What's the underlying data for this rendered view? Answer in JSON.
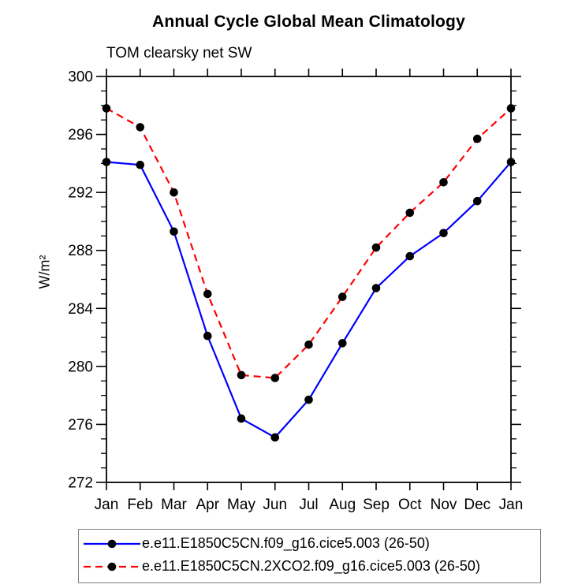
{
  "chart_data": {
    "type": "line",
    "title": "Annual Cycle Global Mean Climatology",
    "subtitle": "TOM clearsky net SW",
    "ylabel": "W/m²",
    "x": [
      "Jan",
      "Feb",
      "Mar",
      "Apr",
      "May",
      "Jun",
      "Jul",
      "Aug",
      "Sep",
      "Oct",
      "Nov",
      "Dec",
      "Jan"
    ],
    "ylim": [
      272,
      300
    ],
    "y_major_ticks": [
      272,
      276,
      280,
      284,
      288,
      292,
      296,
      300
    ],
    "y_minor_step": 1,
    "grid": false,
    "legend_position": "bottom",
    "marker_color": "#000000",
    "axis_color": "#000000",
    "series": [
      {
        "name": "e.e11.E1850C5CN.f09_g16.cice5.003 (26-50)",
        "color": "#0000ff",
        "line_style": "solid",
        "marker": "circle",
        "values": [
          294.1,
          293.9,
          289.3,
          282.1,
          276.4,
          275.1,
          277.7,
          281.6,
          285.4,
          287.6,
          289.2,
          291.4,
          294.1
        ]
      },
      {
        "name": "e.e11.E1850C5CN.2XCO2.f09_g16.cice5.003 (26-50)",
        "color": "#ff0000",
        "line_style": "dashed",
        "marker": "circle",
        "values": [
          297.8,
          296.5,
          292.0,
          285.0,
          279.4,
          279.2,
          281.5,
          284.8,
          288.2,
          290.6,
          292.7,
          295.7,
          297.8
        ]
      }
    ]
  }
}
